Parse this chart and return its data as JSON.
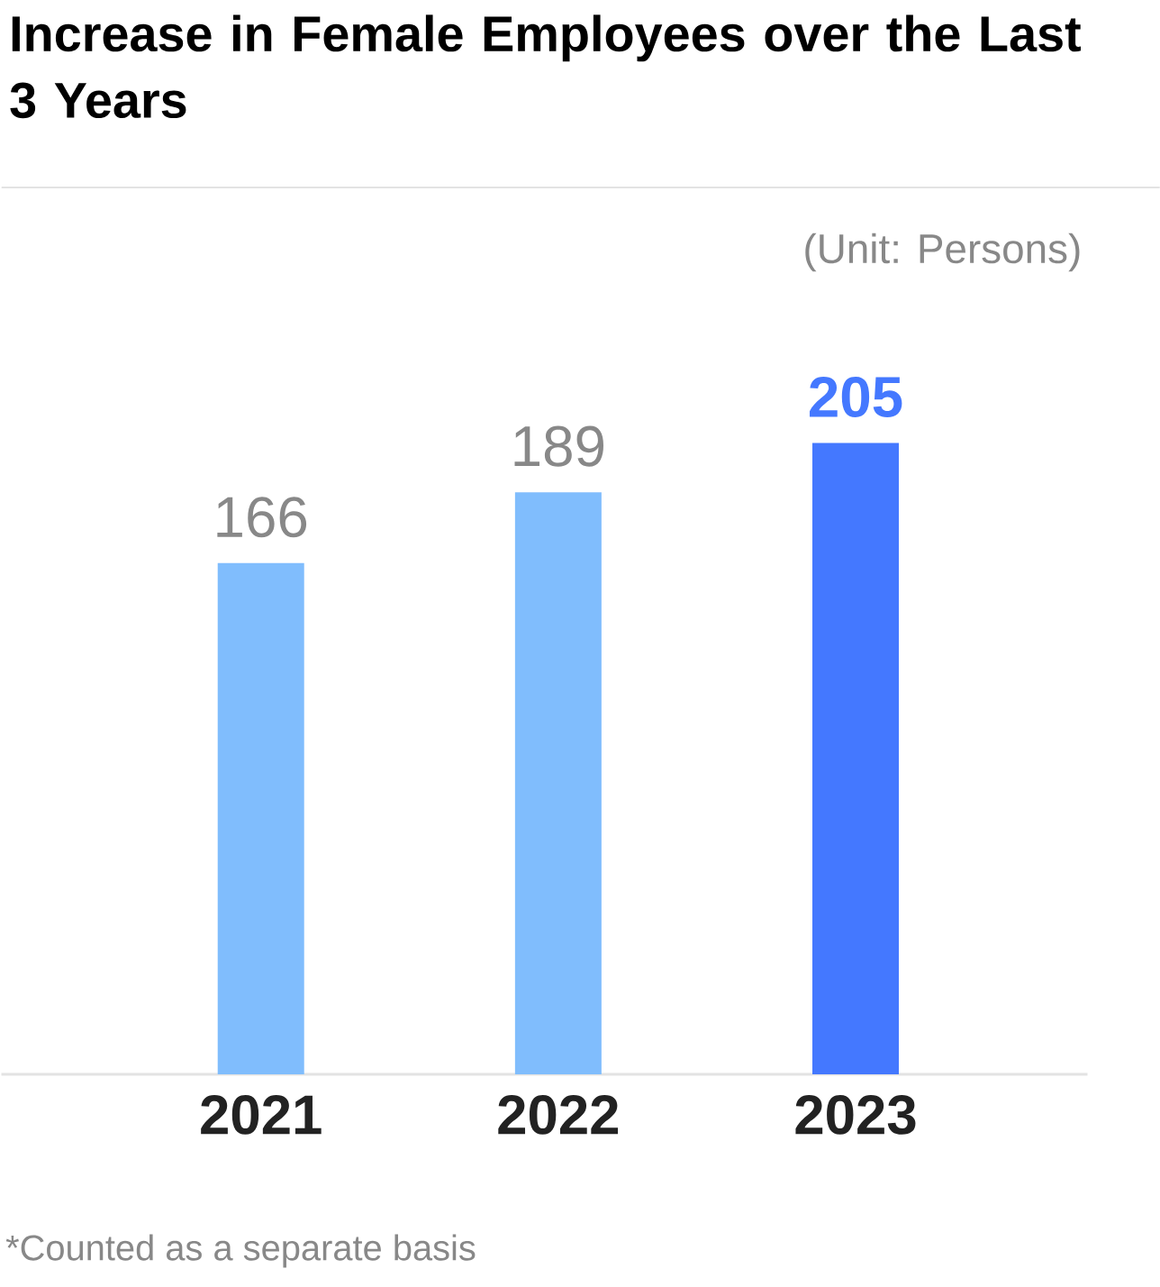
{
  "chart_data": {
    "type": "bar",
    "title": "Increase in Female Employees over the Last 3 Years",
    "categories": [
      "2021",
      "2022",
      "2023"
    ],
    "values": [
      166,
      189,
      205
    ],
    "colors": [
      "#80bdfd",
      "#80bdfd",
      "#4478ff"
    ],
    "data_labels": true,
    "tick_labels": "x",
    "annotations": [
      "(Unit: Persons)",
      "*Counted as a separate basis"
    ]
  }
}
